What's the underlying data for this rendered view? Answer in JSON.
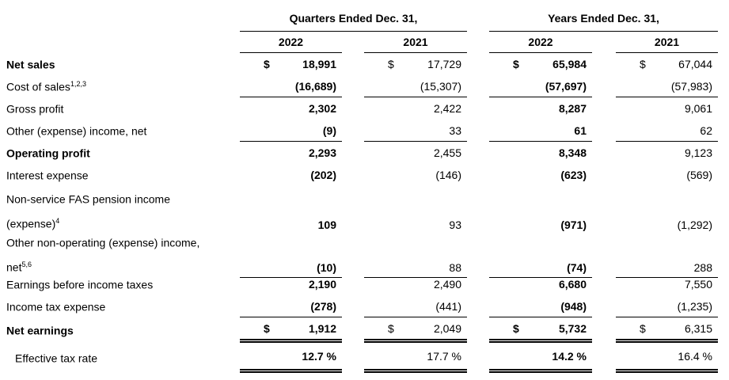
{
  "header": {
    "groups": [
      {
        "label": "Quarters Ended Dec. 31,"
      },
      {
        "label": "Years Ended Dec. 31,"
      }
    ],
    "years": [
      "2022",
      "2021",
      "2022",
      "2021"
    ]
  },
  "rows": [
    {
      "label": "Net sales",
      "emphasis": true,
      "cells": [
        {
          "cur": "$",
          "num": "18,991"
        },
        {
          "cur": "$",
          "num": "17,729"
        },
        {
          "cur": "$",
          "num": "65,984"
        },
        {
          "cur": "$",
          "num": "67,044"
        }
      ]
    },
    {
      "label": "Cost of sales",
      "sup": "1,2,3",
      "rule": "single",
      "cells": [
        {
          "num": "(16,689)"
        },
        {
          "num": "(15,307)"
        },
        {
          "num": "(57,697)"
        },
        {
          "num": "(57,983)"
        }
      ]
    },
    {
      "label": "Gross profit",
      "cells": [
        {
          "num": "2,302"
        },
        {
          "num": "2,422"
        },
        {
          "num": "8,287"
        },
        {
          "num": "9,061"
        }
      ]
    },
    {
      "label": "Other (expense) income, net",
      "rule": "single",
      "cells": [
        {
          "num": "(9)"
        },
        {
          "num": "33"
        },
        {
          "num": "61"
        },
        {
          "num": "62"
        }
      ]
    },
    {
      "label": "Operating profit",
      "emphasis": true,
      "cells": [
        {
          "num": "2,293"
        },
        {
          "num": "2,455"
        },
        {
          "num": "8,348"
        },
        {
          "num": "9,123"
        }
      ]
    },
    {
      "label": "Interest expense",
      "cells": [
        {
          "num": "(202)"
        },
        {
          "num": "(146)"
        },
        {
          "num": "(623)"
        },
        {
          "num": "(569)"
        }
      ]
    },
    {
      "label": "Non-service FAS pension income",
      "label2": "(expense)",
      "sup2": "4",
      "cells": [
        {
          "num": "109"
        },
        {
          "num": "93"
        },
        {
          "num": "(971)"
        },
        {
          "num": "(1,292)"
        }
      ]
    },
    {
      "label": "Other non-operating (expense) income,",
      "label2": "net",
      "sup2": "5,6",
      "rule": "single",
      "cells": [
        {
          "num": "(10)"
        },
        {
          "num": "88"
        },
        {
          "num": "(74)"
        },
        {
          "num": "288"
        }
      ]
    },
    {
      "label": "Earnings before income taxes",
      "cells": [
        {
          "num": "2,190"
        },
        {
          "num": "2,490"
        },
        {
          "num": "6,680"
        },
        {
          "num": "7,550"
        }
      ]
    },
    {
      "label": "Income tax expense",
      "rule": "single",
      "cells": [
        {
          "num": "(278)"
        },
        {
          "num": "(441)"
        },
        {
          "num": "(948)"
        },
        {
          "num": "(1,235)"
        }
      ]
    },
    {
      "label": "Net earnings",
      "emphasis": true,
      "rule": "double",
      "cells": [
        {
          "cur": "$",
          "num": "1,912"
        },
        {
          "cur": "$",
          "num": "2,049"
        },
        {
          "cur": "$",
          "num": "5,732"
        },
        {
          "cur": "$",
          "num": "6,315"
        }
      ]
    },
    {
      "label": "Effective tax rate",
      "indent": true,
      "rule": "double",
      "cells": [
        {
          "num": "12.7 %"
        },
        {
          "num": "17.7 %"
        },
        {
          "num": "14.2 %"
        },
        {
          "num": "16.4 %"
        }
      ]
    }
  ],
  "colors": {
    "text": "#000000",
    "rule": "#000000",
    "background": "#ffffff"
  }
}
